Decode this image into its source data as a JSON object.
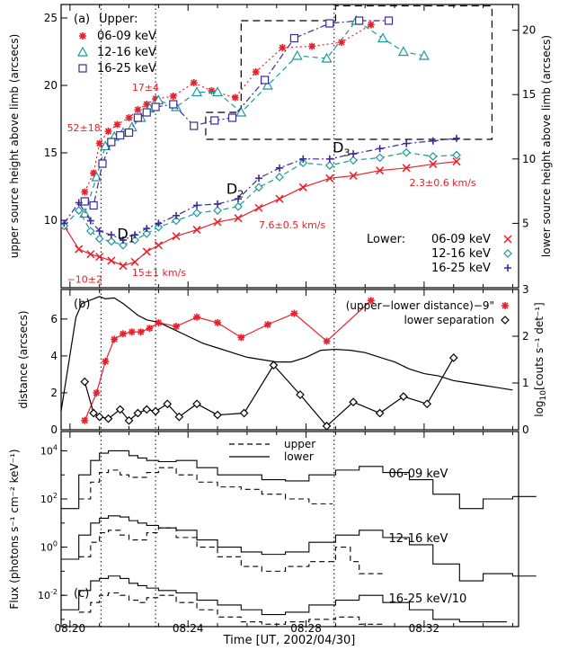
{
  "figure": {
    "xlabel": "Time [UT, 2002/04/30]",
    "xticks": [
      "08:20",
      "08:24",
      "08:28",
      "08:32"
    ],
    "colors": {
      "red": "#e8202a",
      "teal": "#1a9a9a",
      "blue": "#3a2a9a",
      "black": "#000000"
    }
  },
  "chart_data": [
    {
      "panel": "a",
      "type": "line",
      "panel_label": "(a)",
      "ylabel_left": "upper source height above limb (arcsecs)",
      "ylabel_right": "lower source height above limb (arcsecs)",
      "ylim_left": [
        5,
        26
      ],
      "ylim_right": [
        0,
        22
      ],
      "xlim_min": [
        -0.3,
        15.2
      ],
      "yticks_left": [
        10,
        15,
        20,
        25
      ],
      "yticks_right": [
        5,
        10,
        15,
        20
      ],
      "upper_legend_title": "Upper:",
      "lower_legend_title": "Lower:",
      "upper_series": [
        {
          "name": "06-09 keV",
          "color": "#e8202a",
          "marker": "asterisk",
          "style": "dotted",
          "x": [
            0.5,
            0.8,
            1.0,
            1.3,
            1.6,
            2.0,
            2.3,
            2.6,
            2.9,
            3.5,
            4.2,
            4.8,
            5.6,
            6.3,
            7.2,
            8.2,
            9.2,
            10.2
          ],
          "y": [
            12.1,
            13.5,
            15.7,
            16.6,
            17.1,
            17.6,
            18.2,
            18.6,
            19.0,
            19.2,
            20.2,
            19.6,
            19.1,
            21.0,
            22.8,
            22.9,
            23.2,
            24.5
          ]
        },
        {
          "name": "12-16 keV",
          "color": "#1a9a9a",
          "marker": "triangle",
          "style": "dashed",
          "x": [
            0.5,
            0.9,
            1.2,
            1.5,
            1.8,
            2.1,
            2.4,
            2.7,
            3.0,
            3.6,
            4.3,
            5.0,
            5.8,
            6.7,
            7.7,
            8.7,
            9.7,
            10.6,
            11.3,
            12.0
          ],
          "y": [
            10.5,
            13.2,
            15.5,
            16.2,
            16.5,
            16.9,
            17.6,
            18.3,
            18.9,
            18.4,
            19.5,
            19.5,
            18.0,
            20.0,
            22.2,
            22.0,
            24.8,
            23.5,
            22.5,
            22.2
          ]
        },
        {
          "name": "16-25 keV",
          "color": "#3a2a9a",
          "marker": "square",
          "style": "dashdot",
          "x": [
            0.5,
            0.8,
            1.1,
            1.4,
            1.7,
            2.0,
            2.3,
            2.6,
            2.9,
            3.5,
            4.2,
            4.9,
            5.5,
            6.6,
            7.6,
            8.8,
            9.8,
            10.8
          ],
          "y": [
            11.4,
            11.1,
            14.2,
            15.8,
            16.3,
            16.5,
            17.6,
            18.0,
            18.4,
            18.6,
            17.0,
            17.4,
            17.6,
            20.4,
            23.5,
            24.6,
            24.8,
            24.8
          ]
        }
      ],
      "lower_series": [
        {
          "name": "06-09 keV",
          "color": "#e8202a",
          "marker": "x",
          "style": "solid",
          "x": [
            -0.2,
            0.3,
            0.7,
            1.0,
            1.4,
            1.8,
            2.2,
            2.6,
            3.0,
            3.6,
            4.3,
            5.0,
            5.7,
            6.4,
            7.1,
            7.9,
            8.8,
            9.6,
            10.5,
            11.4,
            12.3,
            13.1
          ],
          "y": [
            4.8,
            3.0,
            2.6,
            2.4,
            2.1,
            1.7,
            2.0,
            2.8,
            3.3,
            4.0,
            4.5,
            5.1,
            5.4,
            6.2,
            6.9,
            7.8,
            8.5,
            8.7,
            9.1,
            9.3,
            9.6,
            9.8
          ]
        },
        {
          "name": "12-16 keV",
          "color": "#1a9a9a",
          "marker": "diamond",
          "style": "dashed",
          "x": [
            -0.2,
            0.3,
            0.7,
            1.0,
            1.4,
            1.8,
            2.2,
            2.6,
            3.0,
            3.6,
            4.3,
            5.0,
            5.7,
            6.4,
            7.1,
            7.9,
            8.8,
            9.6,
            10.5,
            11.4,
            12.3,
            13.1
          ],
          "y": [
            4.8,
            6.0,
            4.4,
            3.8,
            3.6,
            3.3,
            3.7,
            4.2,
            4.7,
            5.2,
            5.8,
            6.0,
            6.3,
            7.8,
            8.6,
            9.7,
            9.5,
            9.9,
            10.1,
            10.5,
            10.2,
            10.3
          ]
        },
        {
          "name": "16-25 keV",
          "color": "#3a2a9a",
          "marker": "plus",
          "style": "dashdot",
          "x": [
            -0.2,
            0.3,
            0.7,
            1.0,
            1.4,
            1.8,
            2.2,
            2.6,
            3.0,
            3.6,
            4.3,
            5.0,
            5.7,
            6.4,
            7.1,
            7.9,
            8.8,
            9.6,
            10.5,
            11.4,
            12.3,
            13.1
          ],
          "y": [
            5.0,
            6.6,
            5.2,
            4.4,
            4.1,
            3.7,
            4.1,
            4.6,
            5.0,
            5.6,
            6.4,
            6.5,
            6.9,
            8.5,
            9.3,
            10.0,
            10.0,
            10.4,
            10.8,
            11.2,
            11.4,
            11.6
          ]
        }
      ],
      "annotations": [
        {
          "text": "17±4",
          "x": 2.1,
          "y": 19.6,
          "color": "#e8202a",
          "axis": "left"
        },
        {
          "text": "52±18",
          "x": -0.1,
          "y": 16.6,
          "color": "#e8202a",
          "axis": "left"
        },
        {
          "text": "2.3±0.6 km/s",
          "x": 11.5,
          "y": 7.9,
          "color": "#e8202a",
          "axis": "right"
        },
        {
          "text": "7.6±0.5 km/s",
          "x": 6.4,
          "y": 4.6,
          "color": "#e8202a",
          "axis": "right"
        },
        {
          "text": "15±1 km/s",
          "x": 2.1,
          "y": 0.9,
          "color": "#e8202a",
          "axis": "right"
        },
        {
          "text": "−10±2",
          "x": -0.1,
          "y": 0.4,
          "color": "#e8202a",
          "axis": "right"
        }
      ],
      "d_labels": [
        {
          "main": "D",
          "sub": "1",
          "x": 1.6,
          "y": 3.8,
          "axis": "right"
        },
        {
          "main": "D",
          "sub": "2",
          "x": 5.3,
          "y": 7.3,
          "axis": "right"
        },
        {
          "main": "D",
          "sub": "3",
          "x": 8.9,
          "y": 10.5,
          "axis": "right"
        }
      ],
      "dashed_box": {
        "corners_left": [
          [
            5.8,
            24.8
          ],
          [
            9.0,
            24.8
          ],
          [
            9.0,
            25.9
          ],
          [
            14.3,
            25.9
          ],
          [
            14.3,
            16.0
          ],
          [
            4.6,
            16.0
          ],
          [
            4.6,
            18.0
          ],
          [
            5.8,
            18.0
          ]
        ]
      }
    },
    {
      "panel": "b",
      "type": "line",
      "panel_label": "(b)",
      "ylabel_left": "distance (arcsecs)",
      "ylabel_right_main": "log",
      "ylabel_right_sub": "10",
      "ylabel_right_rest": "[couts s⁻¹ det⁻¹]",
      "ylim_left": [
        0,
        7.6
      ],
      "ylim_right": [
        0,
        3
      ],
      "yticks_left": [
        0,
        2,
        4,
        6
      ],
      "yticks_right": [
        0,
        1,
        2,
        3
      ],
      "series": [
        {
          "name": "(upper−lower distance)−9\"",
          "color": "#e8202a",
          "marker": "asterisk",
          "style": "solid",
          "x": [
            0.5,
            0.9,
            1.2,
            1.5,
            1.8,
            2.1,
            2.4,
            2.7,
            3.0,
            3.6,
            4.3,
            5.0,
            5.8,
            6.7,
            7.6,
            8.7,
            10.2
          ],
          "y": [
            0.5,
            2.0,
            3.7,
            4.9,
            5.2,
            5.3,
            5.3,
            5.5,
            5.8,
            5.6,
            6.1,
            5.8,
            5.0,
            5.7,
            6.3,
            4.8,
            7.0
          ]
        },
        {
          "name": "lower separation",
          "color": "#000000",
          "marker": "diamond",
          "style": "solid",
          "x": [
            0.5,
            0.8,
            1.0,
            1.3,
            1.7,
            2.0,
            2.3,
            2.6,
            2.9,
            3.3,
            3.7,
            4.3,
            5.0,
            5.9,
            6.9,
            7.8,
            8.7,
            9.6,
            10.5,
            11.3,
            12.1,
            13.0
          ],
          "y": [
            2.6,
            0.9,
            0.7,
            0.6,
            1.1,
            0.5,
            0.9,
            1.1,
            1.0,
            1.4,
            0.7,
            1.4,
            0.8,
            0.9,
            3.5,
            1.9,
            0.2,
            1.5,
            0.9,
            1.8,
            1.4,
            3.9
          ]
        }
      ],
      "lightcurve": {
        "x": [
          -0.3,
          0.0,
          0.2,
          0.4,
          0.6,
          0.8,
          1.0,
          1.2,
          1.5,
          1.8,
          2.0,
          2.3,
          2.6,
          3.0,
          3.5,
          4.0,
          4.5,
          5.0,
          5.5,
          6.0,
          6.5,
          7.0,
          7.5,
          8.0,
          8.5,
          9.0,
          9.5,
          10.0,
          10.5,
          11.0,
          11.5,
          12.0,
          12.5,
          13.0,
          13.5,
          14.0,
          14.5,
          15.0
        ],
        "y": [
          0.4,
          1.6,
          2.4,
          2.7,
          2.75,
          2.8,
          2.85,
          2.8,
          2.82,
          2.7,
          2.6,
          2.45,
          2.35,
          2.3,
          2.15,
          2.0,
          1.85,
          1.75,
          1.65,
          1.55,
          1.5,
          1.45,
          1.45,
          1.55,
          1.7,
          1.72,
          1.7,
          1.65,
          1.55,
          1.45,
          1.3,
          1.2,
          1.15,
          1.05,
          1.0,
          0.95,
          0.9,
          0.85
        ]
      }
    },
    {
      "panel": "c",
      "type": "line",
      "panel_label": "(c)",
      "ylabel": "Flux (photons s⁻¹ cm⁻² keV⁻¹)",
      "ylog": true,
      "ylim_log10": [
        -3.3,
        4.8
      ],
      "yticks_log10": [
        4,
        2,
        0,
        -2
      ],
      "legend": [
        {
          "name": "upper",
          "style": "dashed"
        },
        {
          "name": "lower",
          "style": "solid"
        }
      ],
      "band_labels": [
        {
          "text": "06-09 keV",
          "x": 10.8,
          "y_log10": 2.9
        },
        {
          "text": "12-16 keV",
          "x": 10.8,
          "y_log10": 0.2
        },
        {
          "text": "16-25 keV/10",
          "x": 10.8,
          "y_log10": -2.3
        }
      ],
      "series": [
        {
          "band": "06-09 keV",
          "name": "lower",
          "style": "solid",
          "x": [
            -0.3,
            0.3,
            0.7,
            1.0,
            1.3,
            1.7,
            2.0,
            2.3,
            2.6,
            3.0,
            3.6,
            4.3,
            5.0,
            5.8,
            6.5,
            7.3,
            8.1,
            9.0,
            9.8,
            10.6,
            11.5,
            12.3,
            13.2,
            14.0,
            15.0
          ],
          "y_log10": [
            1.6,
            3.0,
            3.6,
            3.9,
            4.0,
            4.0,
            3.8,
            3.7,
            3.6,
            3.55,
            3.6,
            3.3,
            3.0,
            3.0,
            2.8,
            2.75,
            3.0,
            3.2,
            3.35,
            3.1,
            2.8,
            2.2,
            1.6,
            2.0,
            2.1
          ]
        },
        {
          "band": "06-09 keV",
          "name": "upper",
          "style": "dashed",
          "x": [
            0.3,
            0.7,
            1.0,
            1.3,
            1.7,
            2.0,
            2.3,
            2.6,
            3.0,
            3.6,
            4.3,
            5.0,
            5.8,
            6.5,
            7.3,
            8.1
          ],
          "y_log10": [
            2.0,
            2.7,
            3.1,
            3.2,
            3.0,
            2.9,
            2.9,
            3.1,
            3.3,
            3.0,
            2.7,
            2.5,
            2.4,
            2.2,
            2.0,
            1.8
          ]
        },
        {
          "band": "12-16 keV",
          "name": "lower",
          "style": "solid",
          "x": [
            -0.3,
            0.3,
            0.7,
            1.0,
            1.3,
            1.7,
            2.0,
            2.3,
            2.6,
            3.0,
            3.6,
            4.3,
            5.0,
            5.8,
            6.5,
            7.3,
            8.1,
            9.0,
            9.8,
            10.6,
            11.5,
            12.3,
            13.2,
            14.0,
            15.0
          ],
          "y_log10": [
            -0.5,
            0.5,
            1.0,
            1.2,
            1.3,
            1.25,
            1.1,
            1.0,
            0.9,
            0.8,
            0.7,
            0.3,
            0.0,
            -0.2,
            -0.3,
            -0.2,
            0.2,
            0.5,
            0.7,
            0.4,
            0.1,
            -0.7,
            -1.4,
            -1.1,
            -1.2
          ]
        },
        {
          "band": "12-16 keV",
          "name": "upper",
          "style": "dashed",
          "x": [
            0.3,
            0.7,
            1.0,
            1.3,
            1.7,
            2.0,
            2.3,
            2.6,
            3.0,
            3.6,
            4.3,
            5.0,
            5.8,
            6.5,
            7.3,
            8.1,
            9.0,
            9.5,
            9.8
          ],
          "y_log10": [
            -0.4,
            0.2,
            0.6,
            0.7,
            0.5,
            0.3,
            0.3,
            0.6,
            0.8,
            0.4,
            0.0,
            -0.4,
            -0.8,
            -1.0,
            -0.8,
            -0.6,
            0.0,
            -0.6,
            -1.1
          ]
        },
        {
          "band": "16-25 keV/10",
          "name": "lower",
          "style": "solid",
          "x": [
            -0.3,
            0.3,
            0.7,
            1.0,
            1.3,
            1.7,
            2.0,
            2.3,
            2.6,
            3.0,
            3.6,
            4.3,
            5.0,
            5.8,
            6.5,
            7.3,
            8.1,
            9.0,
            9.8,
            10.6,
            11.5,
            12.3,
            13.2,
            14.0
          ],
          "y_log10": [
            -2.6,
            -1.8,
            -1.4,
            -1.3,
            -1.2,
            -1.3,
            -1.5,
            -1.6,
            -1.7,
            -1.8,
            -1.9,
            -2.2,
            -2.4,
            -2.6,
            -2.8,
            -2.7,
            -2.4,
            -2.2,
            -2.0,
            -2.3,
            -2.6,
            -3.0,
            -3.1,
            -3.1
          ]
        },
        {
          "band": "16-25 keV/10",
          "name": "upper",
          "style": "dashed",
          "x": [
            0.3,
            0.7,
            1.0,
            1.3,
            1.7,
            2.0,
            2.3,
            2.6,
            3.0,
            3.6,
            4.3,
            5.0,
            5.8,
            6.5,
            7.3,
            8.1,
            9.0,
            9.8,
            10.6
          ],
          "y_log10": [
            -2.7,
            -2.3,
            -2.0,
            -1.9,
            -2.0,
            -2.2,
            -2.3,
            -2.1,
            -2.0,
            -2.3,
            -2.6,
            -2.9,
            -3.1,
            -3.2,
            -3.1,
            -3.0,
            -2.9,
            -3.2,
            -3.3
          ]
        }
      ]
    }
  ],
  "vlines_x": [
    1.05,
    2.9,
    8.95
  ]
}
